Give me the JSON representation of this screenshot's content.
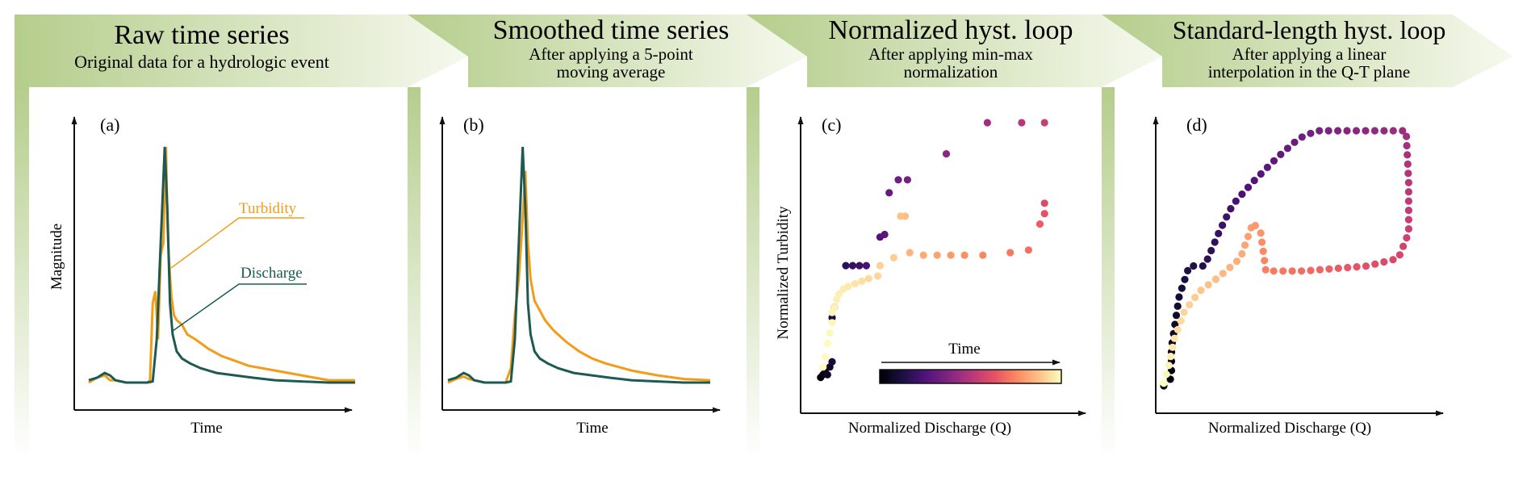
{
  "stages": [
    {
      "title": "Raw time series",
      "subtitle_lines": [
        "Original data for a hydrologic event"
      ]
    },
    {
      "title": "Smoothed time series",
      "subtitle_lines": [
        "After applying a 5-point",
        "moving average"
      ]
    },
    {
      "title": "Normalized hyst. loop",
      "subtitle_lines": [
        "After applying min-max",
        "normalization"
      ]
    },
    {
      "title": "Standard-length hyst. loop",
      "subtitle_lines": [
        "After applying a linear",
        "interpolation in the Q-T plane"
      ]
    }
  ],
  "colors": {
    "banner_dark": "#b5cd8c",
    "banner_light": "#f6f9ee",
    "discharge": "#1d5a53",
    "turbidity": "#f39c1a",
    "axis": "#111111"
  },
  "panels": {
    "a": {
      "label": "(a)",
      "xlabel": "Time",
      "ylabel": "Magnitude",
      "legend_turbidity": "Turbidity",
      "legend_discharge": "Discharge"
    },
    "b": {
      "label": "(b)",
      "xlabel": "Time"
    },
    "c": {
      "label": "(c)",
      "xlabel": "Normalized Discharge (Q)",
      "ylabel": "Normalized Turbidity",
      "colorbar_label": "Time"
    },
    "d": {
      "label": "(d)",
      "xlabel": "Normalized Discharge (Q)"
    }
  },
  "chart_data": [
    {
      "panel": "a",
      "type": "line",
      "x_label": "Time",
      "y_label": "Magnitude",
      "xlim": [
        0,
        100
      ],
      "ylim": [
        0,
        100
      ],
      "series": [
        {
          "name": "Discharge",
          "x": [
            0,
            3,
            6,
            8,
            10,
            14,
            18,
            22,
            24,
            25.5,
            27,
            28.5,
            29.5,
            30.5,
            31.5,
            33,
            35,
            38,
            42,
            48,
            55,
            62,
            70,
            80,
            90,
            100
          ],
          "y": [
            3,
            4,
            6,
            5,
            3,
            2,
            2,
            2,
            2.5,
            20,
            60,
            100,
            75,
            35,
            22,
            15,
            12,
            10,
            8,
            6,
            5,
            4,
            3,
            2.5,
            2,
            2
          ]
        },
        {
          "name": "Turbidity",
          "x": [
            0,
            3,
            6,
            8,
            10,
            14,
            18,
            22,
            23,
            24,
            25,
            26,
            27,
            28,
            29,
            29.5,
            30,
            31,
            32,
            33,
            35,
            37,
            40,
            45,
            50,
            55,
            60,
            70,
            80,
            90,
            100
          ],
          "y": [
            2,
            4,
            5,
            3,
            3,
            2,
            2,
            2,
            3,
            35,
            40,
            20,
            55,
            60,
            100,
            70,
            55,
            38,
            30,
            28,
            26,
            22,
            20,
            16,
            13,
            11,
            9,
            7,
            5,
            3,
            3
          ]
        }
      ]
    },
    {
      "panel": "b",
      "type": "line",
      "x_label": "Time",
      "xlim": [
        0,
        100
      ],
      "ylim": [
        0,
        100
      ],
      "series": [
        {
          "name": "Discharge",
          "x": [
            0,
            3,
            6,
            8,
            10,
            14,
            18,
            22,
            24,
            25.5,
            27,
            28.5,
            29.5,
            30.5,
            31.5,
            33,
            35,
            38,
            42,
            48,
            55,
            62,
            70,
            80,
            90,
            100
          ],
          "y": [
            3,
            4,
            6,
            5,
            3,
            2,
            2,
            2,
            2.5,
            20,
            60,
            100,
            75,
            35,
            22,
            15,
            12,
            10,
            8,
            6,
            5,
            4,
            3,
            2.5,
            2,
            2
          ]
        },
        {
          "name": "Turbidity",
          "x": [
            0,
            3,
            6,
            8,
            10,
            14,
            18,
            22,
            24,
            25.5,
            27,
            28.5,
            29.5,
            30.5,
            31.5,
            33,
            35,
            37,
            40,
            45,
            50,
            55,
            60,
            70,
            80,
            90,
            100
          ],
          "y": [
            2,
            3.5,
            4.5,
            3.5,
            3,
            2,
            2,
            2,
            8,
            30,
            45,
            70,
            90,
            60,
            45,
            36,
            32,
            28,
            24,
            19,
            15,
            12,
            10,
            7,
            5,
            3.5,
            3
          ]
        }
      ]
    },
    {
      "panel": "c",
      "type": "scatter",
      "x_label": "Normalized Discharge (Q)",
      "y_label": "Normalized Turbidity",
      "xlim": [
        0,
        1
      ],
      "ylim": [
        0,
        1
      ],
      "color_by": "time",
      "points": [
        {
          "x": 0.01,
          "y": 0.02,
          "t": 0.0
        },
        {
          "x": 0.02,
          "y": 0.03,
          "t": 0.02
        },
        {
          "x": 0.03,
          "y": 0.04,
          "t": 0.04
        },
        {
          "x": 0.04,
          "y": 0.03,
          "t": 0.06
        },
        {
          "x": 0.05,
          "y": 0.06,
          "t": 0.08
        },
        {
          "x": 0.06,
          "y": 0.08,
          "t": 0.1
        },
        {
          "x": 0.06,
          "y": 0.25,
          "t": 0.12
        },
        {
          "x": 0.07,
          "y": 0.29,
          "t": 0.14
        },
        {
          "x": 0.12,
          "y": 0.45,
          "t": 0.17
        },
        {
          "x": 0.15,
          "y": 0.45,
          "t": 0.19
        },
        {
          "x": 0.18,
          "y": 0.45,
          "t": 0.21
        },
        {
          "x": 0.21,
          "y": 0.45,
          "t": 0.23
        },
        {
          "x": 0.27,
          "y": 0.56,
          "t": 0.26
        },
        {
          "x": 0.29,
          "y": 0.57,
          "t": 0.28
        },
        {
          "x": 0.31,
          "y": 0.73,
          "t": 0.31
        },
        {
          "x": 0.35,
          "y": 0.78,
          "t": 0.33
        },
        {
          "x": 0.39,
          "y": 0.78,
          "t": 0.35
        },
        {
          "x": 0.56,
          "y": 0.88,
          "t": 0.4
        },
        {
          "x": 0.74,
          "y": 1.0,
          "t": 0.45
        },
        {
          "x": 0.89,
          "y": 1.0,
          "t": 0.5
        },
        {
          "x": 0.99,
          "y": 1.0,
          "t": 0.55
        },
        {
          "x": 0.99,
          "y": 0.69,
          "t": 0.6
        },
        {
          "x": 0.99,
          "y": 0.65,
          "t": 0.63
        },
        {
          "x": 0.97,
          "y": 0.61,
          "t": 0.66
        },
        {
          "x": 0.92,
          "y": 0.51,
          "t": 0.7
        },
        {
          "x": 0.84,
          "y": 0.5,
          "t": 0.72
        },
        {
          "x": 0.72,
          "y": 0.49,
          "t": 0.75
        },
        {
          "x": 0.64,
          "y": 0.49,
          "t": 0.77
        },
        {
          "x": 0.58,
          "y": 0.49,
          "t": 0.79
        },
        {
          "x": 0.52,
          "y": 0.49,
          "t": 0.81
        },
        {
          "x": 0.46,
          "y": 0.49,
          "t": 0.83
        },
        {
          "x": 0.4,
          "y": 0.5,
          "t": 0.85
        },
        {
          "x": 0.38,
          "y": 0.64,
          "t": 0.87
        },
        {
          "x": 0.36,
          "y": 0.64,
          "t": 0.88
        },
        {
          "x": 0.33,
          "y": 0.48,
          "t": 0.9
        },
        {
          "x": 0.27,
          "y": 0.45,
          "t": 0.91
        },
        {
          "x": 0.26,
          "y": 0.41,
          "t": 0.92
        },
        {
          "x": 0.22,
          "y": 0.4,
          "t": 0.93
        },
        {
          "x": 0.19,
          "y": 0.39,
          "t": 0.94
        },
        {
          "x": 0.16,
          "y": 0.38,
          "t": 0.95
        },
        {
          "x": 0.13,
          "y": 0.37,
          "t": 0.96
        },
        {
          "x": 0.11,
          "y": 0.36,
          "t": 0.965
        },
        {
          "x": 0.09,
          "y": 0.34,
          "t": 0.97
        },
        {
          "x": 0.08,
          "y": 0.32,
          "t": 0.975
        },
        {
          "x": 0.07,
          "y": 0.29,
          "t": 0.98
        },
        {
          "x": 0.06,
          "y": 0.27,
          "t": 0.983
        },
        {
          "x": 0.06,
          "y": 0.23,
          "t": 0.986
        },
        {
          "x": 0.05,
          "y": 0.19,
          "t": 0.99
        },
        {
          "x": 0.04,
          "y": 0.15,
          "t": 0.993
        },
        {
          "x": 0.03,
          "y": 0.1,
          "t": 0.996
        },
        {
          "x": 0.02,
          "y": 0.06,
          "t": 1.0
        }
      ]
    },
    {
      "panel": "d",
      "type": "scatter",
      "x_label": "Normalized Discharge (Q)",
      "xlim": [
        0,
        1
      ],
      "ylim": [
        0,
        1
      ],
      "color_by": "time",
      "path": [
        {
          "x": 0.0,
          "y": 0.0
        },
        {
          "x": 0.02,
          "y": 0.02
        },
        {
          "x": 0.03,
          "y": 0.03
        },
        {
          "x": 0.03,
          "y": 0.15
        },
        {
          "x": 0.06,
          "y": 0.35
        },
        {
          "x": 0.1,
          "y": 0.47
        },
        {
          "x": 0.16,
          "y": 0.47
        },
        {
          "x": 0.22,
          "y": 0.61
        },
        {
          "x": 0.27,
          "y": 0.71
        },
        {
          "x": 0.35,
          "y": 0.8
        },
        {
          "x": 0.45,
          "y": 0.9
        },
        {
          "x": 0.53,
          "y": 0.97
        },
        {
          "x": 0.6,
          "y": 1.0
        },
        {
          "x": 0.8,
          "y": 1.0
        },
        {
          "x": 0.95,
          "y": 1.0
        },
        {
          "x": 0.96,
          "y": 0.8
        },
        {
          "x": 0.96,
          "y": 0.6
        },
        {
          "x": 0.92,
          "y": 0.5
        },
        {
          "x": 0.8,
          "y": 0.47
        },
        {
          "x": 0.55,
          "y": 0.45
        },
        {
          "x": 0.4,
          "y": 0.45
        },
        {
          "x": 0.38,
          "y": 0.6
        },
        {
          "x": 0.35,
          "y": 0.64
        },
        {
          "x": 0.3,
          "y": 0.5
        },
        {
          "x": 0.22,
          "y": 0.43
        },
        {
          "x": 0.14,
          "y": 0.37
        },
        {
          "x": 0.08,
          "y": 0.29
        },
        {
          "x": 0.04,
          "y": 0.18
        },
        {
          "x": 0.02,
          "y": 0.08
        },
        {
          "x": 0.0,
          "y": 0.01
        }
      ],
      "n_points": 100
    }
  ]
}
